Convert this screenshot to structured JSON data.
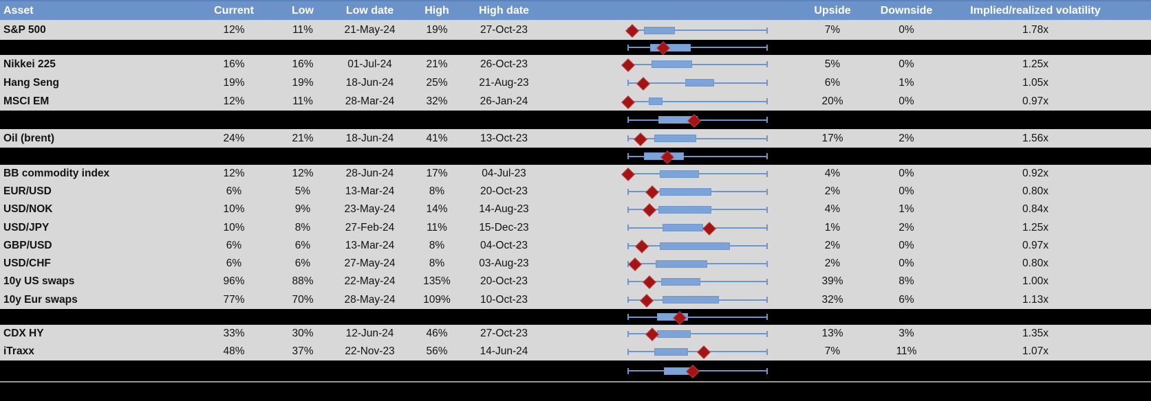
{
  "colors": {
    "header_bg": "#6b93ca",
    "header_top_edge": "#5b84bf",
    "header_bottom_edge": "#c9d2e0",
    "header_text": "#ffffff",
    "row_bg": "#d8d8d8",
    "separator_bg": "#000000",
    "text": "#121212",
    "box_fill": "#7ca4d9",
    "box_border": "#6d96cc",
    "whisker": "#6d96cc",
    "diamond": "#a31414",
    "diamond_border": "#bf4040",
    "bottom_line": "#9a9a9a"
  },
  "chart_data": {
    "type": "table",
    "title": "Implied volatility ranges by asset",
    "columns": [
      "Asset",
      "Current",
      "Low",
      "Low date",
      "High",
      "High date",
      "Upside",
      "Downside",
      "Implied/realized volatility"
    ],
    "embedded_chart": {
      "type": "boxplot-horizontal",
      "axis_range": [
        0,
        100
      ],
      "units": "percent of whisker span (normalized low-high range)",
      "marker": "red diamond = current level",
      "grid": false,
      "legend": false
    },
    "rows": [
      {
        "type": "data",
        "asset": "S&P 500",
        "current": "12%",
        "low": "11%",
        "low_date": "21-May-24",
        "high": "19%",
        "high_date": "27-Oct-23",
        "upside": "7%",
        "downside": "0%",
        "implied_realized_vol": "1.78x",
        "boxplot": {
          "box_low": 12,
          "box_high": 34,
          "diamond": 3
        }
      },
      {
        "type": "separator",
        "boxplot": {
          "box_low": 16,
          "box_high": 45,
          "diamond": 25
        }
      },
      {
        "type": "data",
        "asset": "Nikkei 225",
        "current": "16%",
        "low": "16%",
        "low_date": "01-Jul-24",
        "high": "21%",
        "high_date": "26-Oct-23",
        "upside": "5%",
        "downside": "0%",
        "implied_realized_vol": "1.25x",
        "boxplot": {
          "box_low": 17,
          "box_high": 46,
          "diamond": 0
        }
      },
      {
        "type": "data",
        "asset": "Hang Seng",
        "current": "19%",
        "low": "19%",
        "low_date": "18-Jun-24",
        "high": "25%",
        "high_date": "21-Aug-23",
        "upside": "6%",
        "downside": "1%",
        "implied_realized_vol": "1.05x",
        "boxplot": {
          "box_low": 41,
          "box_high": 62,
          "diamond": 11
        }
      },
      {
        "type": "data",
        "asset": "MSCI EM",
        "current": "12%",
        "low": "11%",
        "low_date": "28-Mar-24",
        "high": "32%",
        "high_date": "26-Jan-24",
        "upside": "20%",
        "downside": "0%",
        "implied_realized_vol": "0.97x",
        "boxplot": {
          "box_low": 15,
          "box_high": 25,
          "diamond": 0
        }
      },
      {
        "type": "separator",
        "boxplot": {
          "box_low": 22,
          "box_high": 50,
          "diamond": 47
        }
      },
      {
        "type": "data",
        "asset": "Oil (brent)",
        "current": "24%",
        "low": "21%",
        "low_date": "18-Jun-24",
        "high": "41%",
        "high_date": "13-Oct-23",
        "upside": "17%",
        "downside": "2%",
        "implied_realized_vol": "1.56x",
        "boxplot": {
          "box_low": 19,
          "box_high": 49,
          "diamond": 9
        }
      },
      {
        "type": "separator",
        "boxplot": {
          "box_low": 12,
          "box_high": 40,
          "diamond": 28
        }
      },
      {
        "type": "data",
        "asset": "BB commodity index",
        "current": "12%",
        "low": "12%",
        "low_date": "28-Jun-24",
        "high": "17%",
        "high_date": "04-Jul-23",
        "upside": "4%",
        "downside": "0%",
        "implied_realized_vol": "0.92x",
        "boxplot": {
          "box_low": 23,
          "box_high": 51,
          "diamond": 0
        }
      },
      {
        "type": "data",
        "asset": "EUR/USD",
        "current": "6%",
        "low": "5%",
        "low_date": "13-Mar-24",
        "high": "8%",
        "high_date": "20-Oct-23",
        "upside": "2%",
        "downside": "0%",
        "implied_realized_vol": "0.80x",
        "boxplot": {
          "box_low": 23,
          "box_high": 60,
          "diamond": 17
        }
      },
      {
        "type": "data",
        "asset": "USD/NOK",
        "current": "10%",
        "low": "9%",
        "low_date": "23-May-24",
        "high": "14%",
        "high_date": "14-Aug-23",
        "upside": "4%",
        "downside": "1%",
        "implied_realized_vol": "0.84x",
        "boxplot": {
          "box_low": 22,
          "box_high": 60,
          "diamond": 15
        }
      },
      {
        "type": "data",
        "asset": "USD/JPY",
        "current": "10%",
        "low": "8%",
        "low_date": "27-Feb-24",
        "high": "11%",
        "high_date": "15-Dec-23",
        "upside": "1%",
        "downside": "2%",
        "implied_realized_vol": "1.25x",
        "boxplot": {
          "box_low": 25,
          "box_high": 54,
          "diamond": 58
        }
      },
      {
        "type": "data",
        "asset": "GBP/USD",
        "current": "6%",
        "low": "6%",
        "low_date": "13-Mar-24",
        "high": "8%",
        "high_date": "04-Oct-23",
        "upside": "2%",
        "downside": "0%",
        "implied_realized_vol": "0.97x",
        "boxplot": {
          "box_low": 23,
          "box_high": 73,
          "diamond": 10
        }
      },
      {
        "type": "data",
        "asset": "USD/CHF",
        "current": "6%",
        "low": "6%",
        "low_date": "27-May-24",
        "high": "8%",
        "high_date": "03-Aug-23",
        "upside": "2%",
        "downside": "0%",
        "implied_realized_vol": "0.80x",
        "boxplot": {
          "box_low": 20,
          "box_high": 57,
          "diamond": 5
        }
      },
      {
        "type": "data",
        "asset": "10y US swaps",
        "current": "96%",
        "low": "88%",
        "low_date": "22-May-24",
        "high": "135%",
        "high_date": "20-Oct-23",
        "upside": "39%",
        "downside": "8%",
        "implied_realized_vol": "1.00x",
        "boxplot": {
          "box_low": 24,
          "box_high": 52,
          "diamond": 15
        }
      },
      {
        "type": "data",
        "asset": "10y Eur swaps",
        "current": "77%",
        "low": "70%",
        "low_date": "28-May-24",
        "high": "109%",
        "high_date": "10-Oct-23",
        "upside": "32%",
        "downside": "6%",
        "implied_realized_vol": "1.13x",
        "boxplot": {
          "box_low": 25,
          "box_high": 65,
          "diamond": 13
        }
      },
      {
        "type": "separator",
        "boxplot": {
          "box_low": 21,
          "box_high": 43,
          "diamond": 37
        }
      },
      {
        "type": "data",
        "asset": "CDX HY",
        "current": "33%",
        "low": "30%",
        "low_date": "12-Jun-24",
        "high": "46%",
        "high_date": "27-Oct-23",
        "upside": "13%",
        "downside": "3%",
        "implied_realized_vol": "1.35x",
        "boxplot": {
          "box_low": 21,
          "box_high": 45,
          "diamond": 17
        }
      },
      {
        "type": "data",
        "asset": "iTraxx",
        "current": "48%",
        "low": "37%",
        "low_date": "22-Nov-23",
        "high": "56%",
        "high_date": "14-Jun-24",
        "upside": "7%",
        "downside": "11%",
        "implied_realized_vol": "1.07x",
        "boxplot": {
          "box_low": 19,
          "box_high": 43,
          "diamond": 54
        }
      },
      {
        "type": "separator",
        "boxplot": {
          "box_low": 26,
          "box_high": 48,
          "diamond": 46
        }
      }
    ]
  }
}
